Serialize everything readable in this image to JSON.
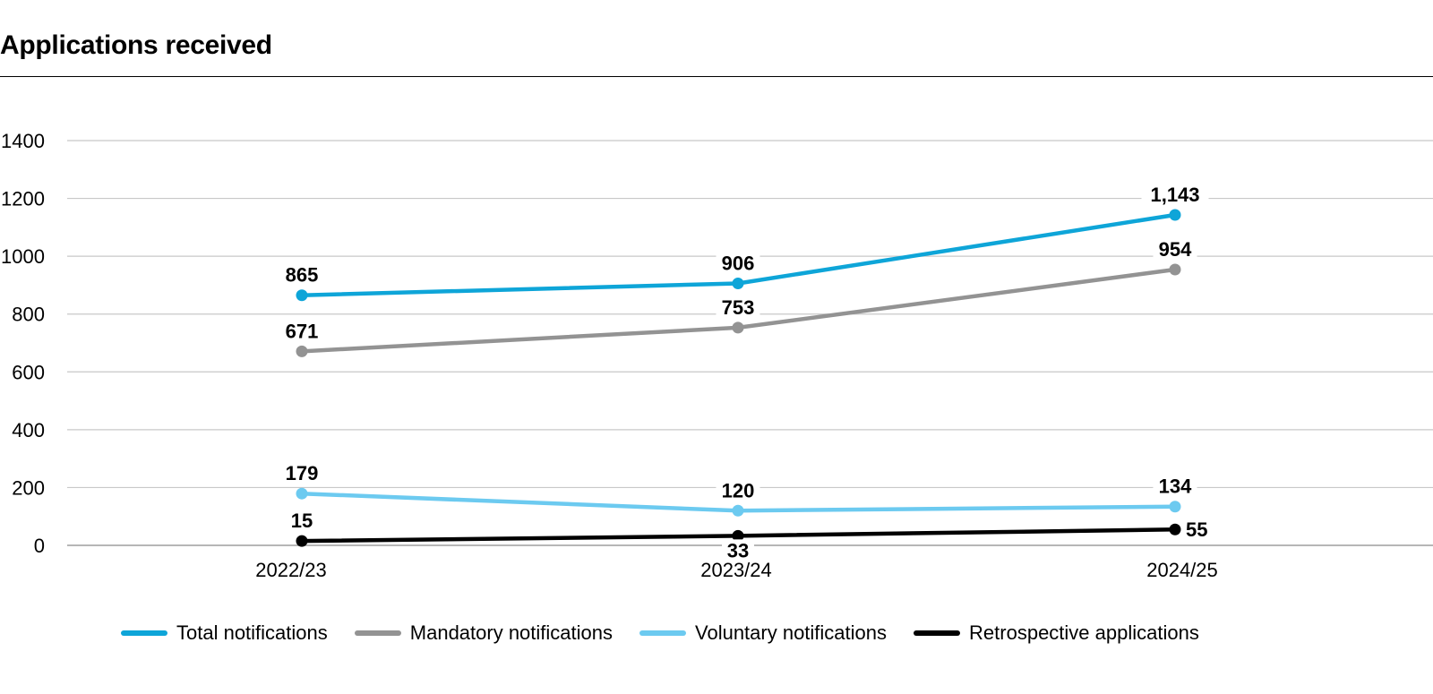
{
  "chart_data": {
    "type": "line",
    "title": "Applications received",
    "categories": [
      "2022/23",
      "2023/24",
      "2024/25"
    ],
    "ylim": [
      0,
      1400
    ],
    "yticks": [
      0,
      200,
      400,
      600,
      800,
      1000,
      1200,
      1400
    ],
    "grid": true,
    "legend_position": "bottom",
    "series": [
      {
        "name": "Total notifications",
        "color": "#0ea5d8",
        "values": [
          865,
          906,
          1143
        ],
        "labels": [
          "865",
          "906",
          "1,143"
        ],
        "label_pos": [
          "above",
          "above",
          "above"
        ]
      },
      {
        "name": "Mandatory notifications",
        "color": "#939393",
        "values": [
          671,
          753,
          954
        ],
        "labels": [
          "671",
          "753",
          "954"
        ],
        "label_pos": [
          "above",
          "above",
          "above"
        ]
      },
      {
        "name": "Voluntary notifications",
        "color": "#6ccaf0",
        "values": [
          179,
          120,
          134
        ],
        "labels": [
          "179",
          "120",
          "134"
        ],
        "label_pos": [
          "above",
          "above",
          "above"
        ]
      },
      {
        "name": "Retrospective applications",
        "color": "#000000",
        "values": [
          15,
          33,
          55
        ],
        "labels": [
          "15",
          "33",
          "55"
        ],
        "label_pos": [
          "above",
          "below",
          "right"
        ]
      }
    ]
  }
}
